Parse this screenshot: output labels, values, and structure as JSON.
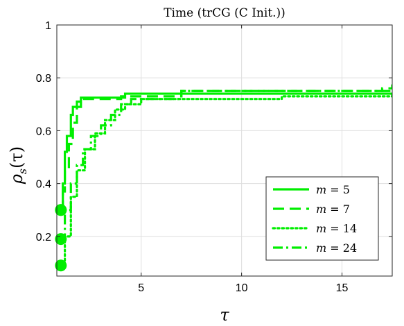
{
  "chart_data": {
    "type": "line",
    "title": "Time (trCG (C Init.))",
    "xlabel": "τ",
    "ylabel_main": "ρ",
    "ylabel_sub": "s",
    "ylabel_arg": "(τ)",
    "xlim": [
      0.8,
      17.5
    ],
    "ylim": [
      0.05,
      1.0
    ],
    "xticks": [
      5,
      10,
      15
    ],
    "yticks": [
      0.2,
      0.4,
      0.6,
      0.8,
      1
    ],
    "ytick_labels": [
      "0.2",
      "0.4",
      "0.6",
      "0.8",
      "1"
    ],
    "grid": true,
    "legend_position": "bottom-right",
    "color": "#00ee00",
    "series": [
      {
        "name": "m = 5",
        "legend_var": "m",
        "legend_value": "= 5",
        "dash": "solid",
        "x": [
          1.0,
          1.1,
          1.2,
          1.3,
          1.5,
          1.6,
          1.8,
          2.0,
          4.2,
          17.5
        ],
        "y": [
          0.3,
          0.4,
          0.52,
          0.58,
          0.66,
          0.69,
          0.71,
          0.725,
          0.74,
          0.74
        ]
      },
      {
        "name": "m = 7",
        "legend_var": "m",
        "legend_value": "= 7",
        "dash": "dashed",
        "x": [
          1.0,
          1.1,
          1.2,
          1.4,
          1.6,
          1.8,
          2.0,
          4.0,
          7.0,
          17.0,
          17.5
        ],
        "y": [
          0.3,
          0.37,
          0.45,
          0.55,
          0.63,
          0.69,
          0.72,
          0.73,
          0.75,
          0.76,
          0.775
        ]
      },
      {
        "name": "m = 14",
        "legend_var": "m",
        "legend_value": "= 14",
        "dash": "dotted",
        "x": [
          1.0,
          1.2,
          1.5,
          1.8,
          2.2,
          2.7,
          3.2,
          3.7,
          4.2,
          5.0,
          12.0,
          17.5
        ],
        "y": [
          0.09,
          0.2,
          0.35,
          0.45,
          0.53,
          0.59,
          0.64,
          0.68,
          0.7,
          0.72,
          0.73,
          0.74
        ]
      },
      {
        "name": "m = 24",
        "legend_var": "m",
        "legend_value": "= 24",
        "dash": "dashdot",
        "x": [
          1.0,
          1.2,
          1.5,
          1.8,
          2.1,
          2.5,
          3.0,
          3.5,
          4.0,
          4.5,
          7.0,
          17.5
        ],
        "y": [
          0.19,
          0.3,
          0.4,
          0.47,
          0.53,
          0.58,
          0.62,
          0.66,
          0.7,
          0.72,
          0.75,
          0.76
        ]
      }
    ]
  }
}
